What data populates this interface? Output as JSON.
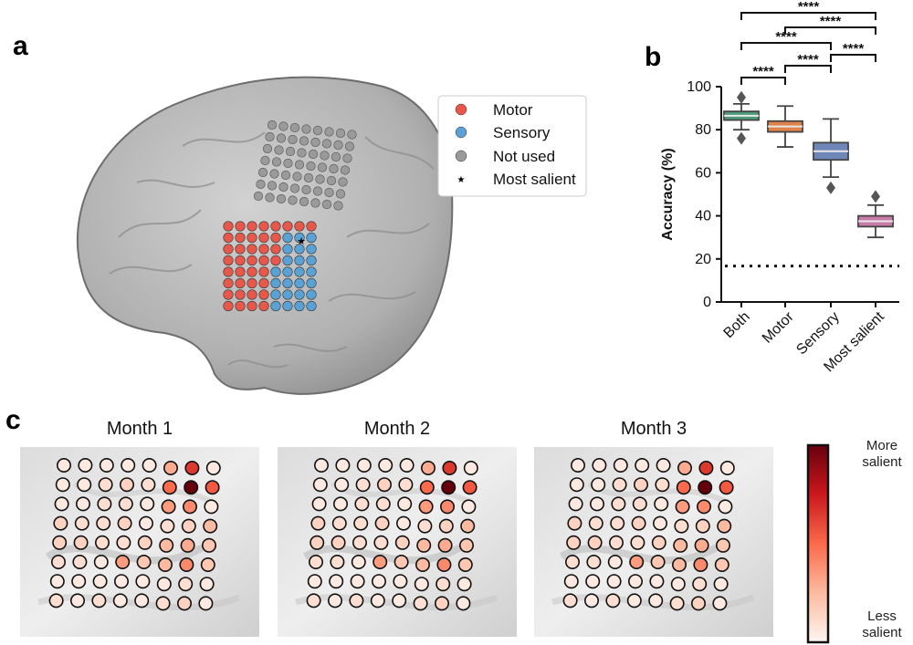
{
  "panels": {
    "a": "a",
    "b": "b",
    "c": "c"
  },
  "colors": {
    "motor": "#e8584a",
    "sensory": "#5aa2d6",
    "not_used": "#9a9a9a",
    "brain": "#b8b8b8"
  },
  "legend": {
    "items": [
      {
        "label": "Motor",
        "marker": "circle",
        "color": "#e8584a"
      },
      {
        "label": "Sensory",
        "marker": "circle",
        "color": "#5aa2d6"
      },
      {
        "label": "Not used",
        "marker": "circle",
        "color": "#9a9a9a"
      },
      {
        "label": "Most salient",
        "marker": "star-icon",
        "color": "#000000"
      }
    ]
  },
  "chart_data": [
    {
      "type": "box",
      "panel": "b",
      "ylabel": "Accuracy (%)",
      "ylim": [
        0,
        100
      ],
      "yticks": [
        0,
        20,
        40,
        60,
        80,
        100
      ],
      "chance_level": 16.7,
      "categories": [
        "Both",
        "Motor",
        "Sensory",
        "Most salient"
      ],
      "boxes": [
        {
          "category": "Both",
          "whislo": 80,
          "q1": 84.5,
          "med": 86.5,
          "q3": 88.5,
          "whishi": 92,
          "fliers": [
            95,
            76
          ],
          "color": "#4f9a7a"
        },
        {
          "category": "Motor",
          "whislo": 72,
          "q1": 79,
          "med": 81.5,
          "q3": 84,
          "whishi": 91,
          "fliers": [],
          "color": "#e0834a"
        },
        {
          "category": "Sensory",
          "whislo": 58,
          "q1": 66,
          "med": 70,
          "q3": 74,
          "whishi": 85,
          "fliers": [
            53
          ],
          "color": "#6f86b8"
        },
        {
          "category": "Most salient",
          "whislo": 30,
          "q1": 35,
          "med": 37.5,
          "q3": 40,
          "whishi": 45,
          "fliers": [
            49
          ],
          "color": "#c87aa8"
        }
      ],
      "significance": [
        {
          "pair": [
            "Both",
            "Motor"
          ],
          "label": "****"
        },
        {
          "pair": [
            "Motor",
            "Sensory"
          ],
          "label": "****"
        },
        {
          "pair": [
            "Sensory",
            "Most salient"
          ],
          "label": "****"
        },
        {
          "pair": [
            "Both",
            "Sensory"
          ],
          "label": "****"
        },
        {
          "pair": [
            "Motor",
            "Most salient"
          ],
          "label": "****"
        },
        {
          "pair": [
            "Both",
            "Most salient"
          ],
          "label": "****"
        }
      ]
    },
    {
      "type": "heatmap",
      "panel": "c",
      "months": [
        "Month 1",
        "Month 2",
        "Month 3"
      ],
      "description": "Electrode saliency (0 = less salient, 1 = more salient)",
      "colorbar": {
        "top_label": [
          "More",
          "salient"
        ],
        "bottom_label": [
          "Less",
          "salient"
        ]
      },
      "rows": [
        [
          0.05,
          0.05,
          0.05,
          0.05,
          0.05,
          0.3,
          0.65,
          0.05
        ],
        [
          0.05,
          0.05,
          0.1,
          0.15,
          0.1,
          0.5,
          1.0,
          0.55
        ],
        [
          0.05,
          0.05,
          0.1,
          0.1,
          0.05,
          0.35,
          0.4,
          0.05
        ],
        [
          0.15,
          0.1,
          0.1,
          0.15,
          0.05,
          0.1,
          0.15,
          0.25
        ],
        [
          0.15,
          0.15,
          0.1,
          0.1,
          0.15,
          0.25,
          0.3,
          0.2
        ],
        [
          0.1,
          0.1,
          0.05,
          0.35,
          0.2,
          0.25,
          0.4,
          0.2
        ],
        [
          0.05,
          0.05,
          0.05,
          0.05,
          0.05,
          0.05,
          0.1,
          0.05
        ],
        [
          0.1,
          0.05,
          0.1,
          0.05,
          0.05,
          0.1,
          0.15,
          0.05
        ]
      ]
    }
  ]
}
